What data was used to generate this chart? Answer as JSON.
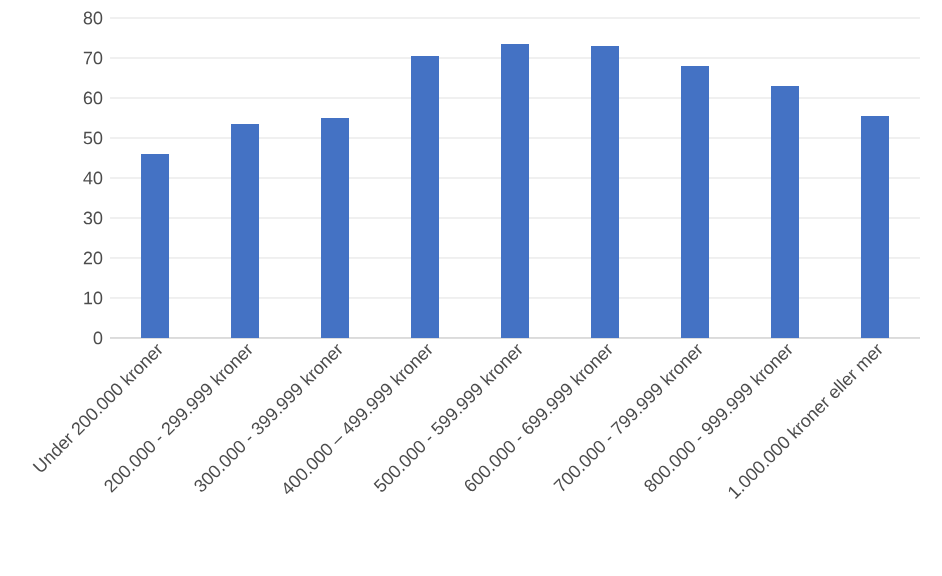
{
  "chart_data": {
    "type": "bar",
    "categories": [
      "Under 200.000 kroner",
      "200.000 - 299.999 kroner",
      "300.000 - 399.999 kroner",
      "400.000 – 499.999 kroner",
      "500.000 - 599.999 kroner",
      "600.000 - 699.999 kroner",
      "700.000 - 799.999 kroner",
      "800.000 - 999.999 kroner",
      "1.000.000 kroner eller mer"
    ],
    "values": [
      46,
      53.5,
      55,
      70.5,
      73.5,
      73,
      68,
      63,
      55.5
    ],
    "color": "#4472c4",
    "ylim": [
      0,
      80
    ],
    "yticks": [
      0,
      10,
      20,
      30,
      40,
      50,
      60,
      70,
      80
    ],
    "grid": "y"
  }
}
